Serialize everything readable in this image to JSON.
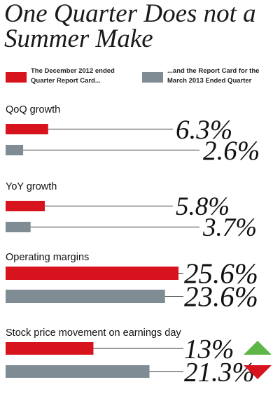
{
  "title": "One Quarter Does not a Summer Make",
  "colors": {
    "dec2012": "#d7131e",
    "mar2013": "#7f8c94",
    "up": "#5fb648",
    "down": "#d7131e"
  },
  "legend": [
    {
      "color": "#d7131e",
      "text": "The December 2012 ended Quarter Report Card..."
    },
    {
      "color": "#7f8c94",
      "text": "...and the Report Card for the March 2013 Ended Quarter"
    }
  ],
  "chart_data": {
    "type": "bar",
    "orientation": "horizontal",
    "series_names": [
      "The December 2012 ended Quarter Report Card...",
      "...and the Report Card for the March 2013 Ended Quarter"
    ],
    "panels": [
      {
        "label": "QoQ growth",
        "values": [
          6.3,
          2.6
        ],
        "labels": [
          "6.3%",
          "2.6%"
        ]
      },
      {
        "label": "YoY growth",
        "values": [
          5.8,
          3.7
        ],
        "labels": [
          "5.8%",
          "3.7%"
        ]
      },
      {
        "label": "Operating margins",
        "values": [
          25.6,
          23.6
        ],
        "labels": [
          "25.6%",
          "23.6%"
        ]
      },
      {
        "label": "Stock price movement on earnings day",
        "values": [
          13,
          -21.3
        ],
        "labels": [
          "13%",
          "21.3%"
        ],
        "indicators": [
          "up",
          "down"
        ]
      }
    ]
  }
}
